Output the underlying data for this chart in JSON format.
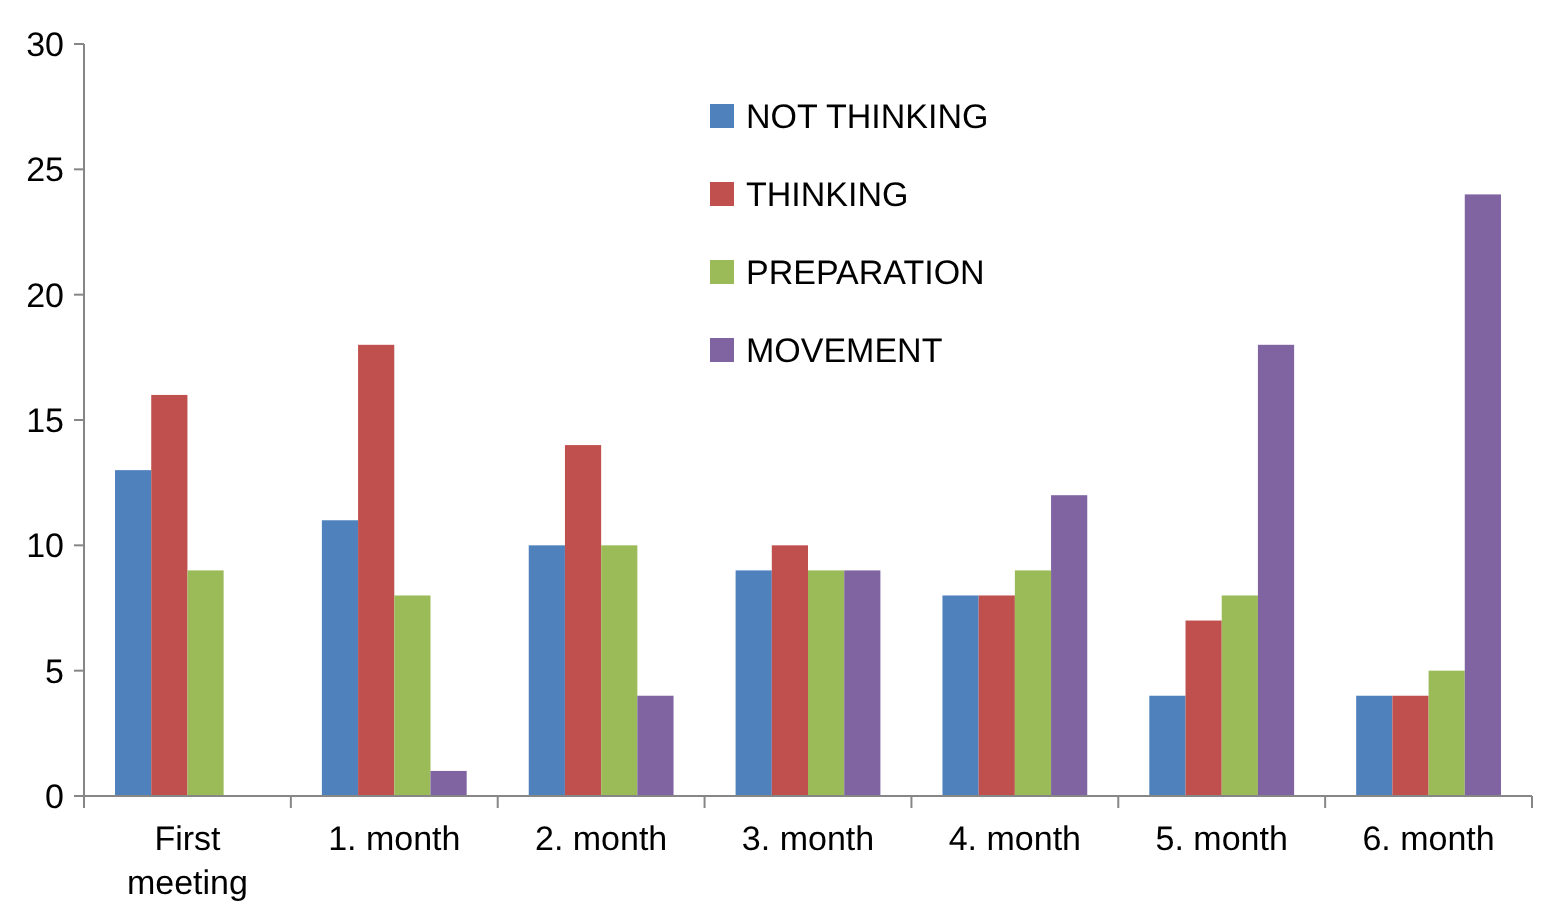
{
  "chart_data": {
    "type": "bar",
    "categories": [
      "First meeting",
      "1. month",
      "2. month",
      "3. month",
      "4. month",
      "5. month",
      "6. month"
    ],
    "series": [
      {
        "name": "NOT THINKING",
        "color": "#4f81bd",
        "values": [
          13,
          11,
          10,
          9,
          8,
          4,
          4
        ]
      },
      {
        "name": "THINKING",
        "color": "#c0504d",
        "values": [
          16,
          18,
          14,
          10,
          8,
          7,
          4
        ]
      },
      {
        "name": "PREPARATION",
        "color": "#9bbb59",
        "values": [
          9,
          8,
          10,
          9,
          9,
          8,
          5
        ]
      },
      {
        "name": "MOVEMENT",
        "color": "#8064a2",
        "values": [
          0,
          1,
          4,
          9,
          12,
          18,
          24
        ]
      }
    ],
    "ylim": [
      0,
      30
    ],
    "yticks": [
      0,
      5,
      10,
      15,
      20,
      25,
      30
    ],
    "grid": false,
    "legend": "top"
  }
}
